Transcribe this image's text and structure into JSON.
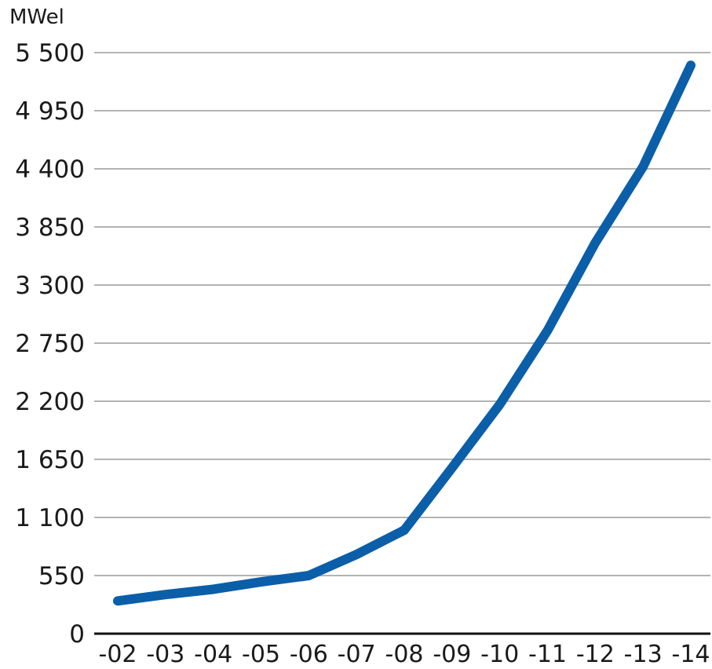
{
  "chart_data": {
    "type": "line",
    "ylabel": "MWel",
    "xlabel": "",
    "categories": [
      "-02",
      "-03",
      "-04",
      "-05",
      "-06",
      "-07",
      "-08",
      "-09",
      "-10",
      "-11",
      "-12",
      "-13",
      "-14"
    ],
    "y_tick_labels": [
      "0",
      "550",
      "1 100",
      "1 650",
      "2 200",
      "2 750",
      "3 300",
      "3 850",
      "4 400",
      "4 950",
      "5 500"
    ],
    "y_ticks": [
      0,
      550,
      1100,
      1650,
      2200,
      2750,
      3300,
      3850,
      4400,
      4950,
      5500
    ],
    "ylim": [
      0,
      5500
    ],
    "grid": true,
    "series": [
      {
        "values": [
          310,
          370,
          420,
          490,
          550,
          750,
          980,
          1570,
          2170,
          2870,
          3700,
          4420,
          5380
        ],
        "color": "#0b5ea8"
      }
    ]
  }
}
